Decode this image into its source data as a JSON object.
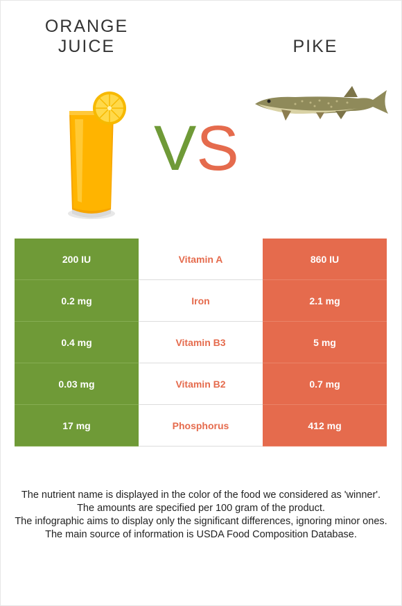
{
  "comparison": {
    "left_food": {
      "name": "ORANGE JUICE",
      "line1": "ORANGE",
      "line2": "JUICE",
      "color": "#6f9a37"
    },
    "right_food": {
      "name": "PIKE",
      "color": "#e56b4d"
    },
    "vs": {
      "v": "V",
      "s": "S"
    }
  },
  "nutrients": [
    {
      "name": "Vitamin A",
      "left": "200 IU",
      "right": "860 IU",
      "winner": "right"
    },
    {
      "name": "Iron",
      "left": "0.2 mg",
      "right": "2.1 mg",
      "winner": "right"
    },
    {
      "name": "Vitamin B3",
      "left": "0.4 mg",
      "right": "5 mg",
      "winner": "right"
    },
    {
      "name": "Vitamin B2",
      "left": "0.03 mg",
      "right": "0.7 mg",
      "winner": "right"
    },
    {
      "name": "Phosphorus",
      "left": "17 mg",
      "right": "412 mg",
      "winner": "right"
    }
  ],
  "footnotes": [
    "The nutrient name is displayed in the color of the food we considered as 'winner'.",
    "The amounts are specified per 100 gram of the product.",
    "The infographic aims to display only the significant differences, ignoring minor ones.",
    "The main source of information is USDA Food Composition Database."
  ]
}
